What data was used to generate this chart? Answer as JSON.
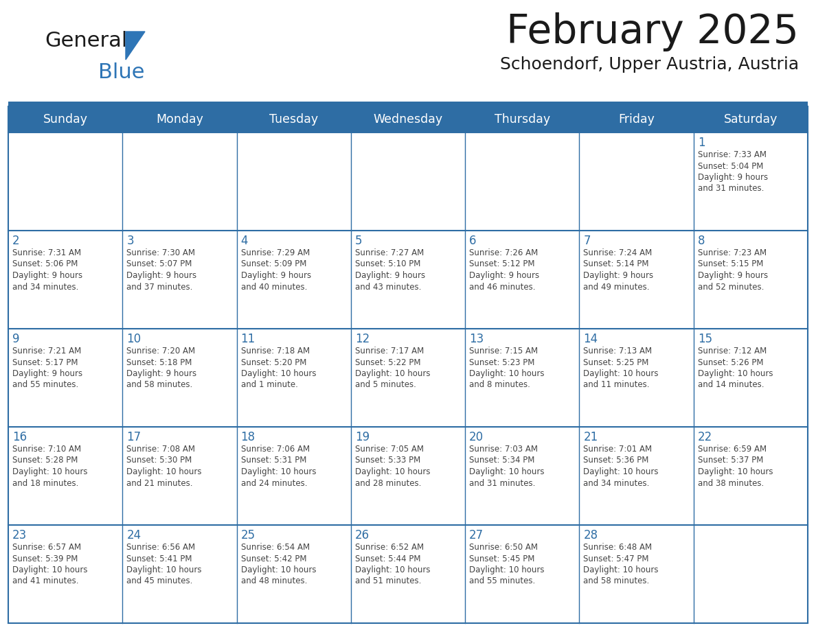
{
  "title": "February 2025",
  "subtitle": "Schoendorf, Upper Austria, Austria",
  "header_bg": "#2E6DA4",
  "header_text_color": "#FFFFFF",
  "day_headers": [
    "Sunday",
    "Monday",
    "Tuesday",
    "Wednesday",
    "Thursday",
    "Friday",
    "Saturday"
  ],
  "cell_bg": "#FFFFFF",
  "border_color": "#2E6DA4",
  "date_color": "#2E6DA4",
  "text_color": "#444444",
  "logo_general_color": "#1A1A1A",
  "logo_blue_color": "#2E75B6",
  "weeks": [
    [
      {
        "day": null,
        "info": ""
      },
      {
        "day": null,
        "info": ""
      },
      {
        "day": null,
        "info": ""
      },
      {
        "day": null,
        "info": ""
      },
      {
        "day": null,
        "info": ""
      },
      {
        "day": null,
        "info": ""
      },
      {
        "day": 1,
        "info": "Sunrise: 7:33 AM\nSunset: 5:04 PM\nDaylight: 9 hours\nand 31 minutes."
      }
    ],
    [
      {
        "day": 2,
        "info": "Sunrise: 7:31 AM\nSunset: 5:06 PM\nDaylight: 9 hours\nand 34 minutes."
      },
      {
        "day": 3,
        "info": "Sunrise: 7:30 AM\nSunset: 5:07 PM\nDaylight: 9 hours\nand 37 minutes."
      },
      {
        "day": 4,
        "info": "Sunrise: 7:29 AM\nSunset: 5:09 PM\nDaylight: 9 hours\nand 40 minutes."
      },
      {
        "day": 5,
        "info": "Sunrise: 7:27 AM\nSunset: 5:10 PM\nDaylight: 9 hours\nand 43 minutes."
      },
      {
        "day": 6,
        "info": "Sunrise: 7:26 AM\nSunset: 5:12 PM\nDaylight: 9 hours\nand 46 minutes."
      },
      {
        "day": 7,
        "info": "Sunrise: 7:24 AM\nSunset: 5:14 PM\nDaylight: 9 hours\nand 49 minutes."
      },
      {
        "day": 8,
        "info": "Sunrise: 7:23 AM\nSunset: 5:15 PM\nDaylight: 9 hours\nand 52 minutes."
      }
    ],
    [
      {
        "day": 9,
        "info": "Sunrise: 7:21 AM\nSunset: 5:17 PM\nDaylight: 9 hours\nand 55 minutes."
      },
      {
        "day": 10,
        "info": "Sunrise: 7:20 AM\nSunset: 5:18 PM\nDaylight: 9 hours\nand 58 minutes."
      },
      {
        "day": 11,
        "info": "Sunrise: 7:18 AM\nSunset: 5:20 PM\nDaylight: 10 hours\nand 1 minute."
      },
      {
        "day": 12,
        "info": "Sunrise: 7:17 AM\nSunset: 5:22 PM\nDaylight: 10 hours\nand 5 minutes."
      },
      {
        "day": 13,
        "info": "Sunrise: 7:15 AM\nSunset: 5:23 PM\nDaylight: 10 hours\nand 8 minutes."
      },
      {
        "day": 14,
        "info": "Sunrise: 7:13 AM\nSunset: 5:25 PM\nDaylight: 10 hours\nand 11 minutes."
      },
      {
        "day": 15,
        "info": "Sunrise: 7:12 AM\nSunset: 5:26 PM\nDaylight: 10 hours\nand 14 minutes."
      }
    ],
    [
      {
        "day": 16,
        "info": "Sunrise: 7:10 AM\nSunset: 5:28 PM\nDaylight: 10 hours\nand 18 minutes."
      },
      {
        "day": 17,
        "info": "Sunrise: 7:08 AM\nSunset: 5:30 PM\nDaylight: 10 hours\nand 21 minutes."
      },
      {
        "day": 18,
        "info": "Sunrise: 7:06 AM\nSunset: 5:31 PM\nDaylight: 10 hours\nand 24 minutes."
      },
      {
        "day": 19,
        "info": "Sunrise: 7:05 AM\nSunset: 5:33 PM\nDaylight: 10 hours\nand 28 minutes."
      },
      {
        "day": 20,
        "info": "Sunrise: 7:03 AM\nSunset: 5:34 PM\nDaylight: 10 hours\nand 31 minutes."
      },
      {
        "day": 21,
        "info": "Sunrise: 7:01 AM\nSunset: 5:36 PM\nDaylight: 10 hours\nand 34 minutes."
      },
      {
        "day": 22,
        "info": "Sunrise: 6:59 AM\nSunset: 5:37 PM\nDaylight: 10 hours\nand 38 minutes."
      }
    ],
    [
      {
        "day": 23,
        "info": "Sunrise: 6:57 AM\nSunset: 5:39 PM\nDaylight: 10 hours\nand 41 minutes."
      },
      {
        "day": 24,
        "info": "Sunrise: 6:56 AM\nSunset: 5:41 PM\nDaylight: 10 hours\nand 45 minutes."
      },
      {
        "day": 25,
        "info": "Sunrise: 6:54 AM\nSunset: 5:42 PM\nDaylight: 10 hours\nand 48 minutes."
      },
      {
        "day": 26,
        "info": "Sunrise: 6:52 AM\nSunset: 5:44 PM\nDaylight: 10 hours\nand 51 minutes."
      },
      {
        "day": 27,
        "info": "Sunrise: 6:50 AM\nSunset: 5:45 PM\nDaylight: 10 hours\nand 55 minutes."
      },
      {
        "day": 28,
        "info": "Sunrise: 6:48 AM\nSunset: 5:47 PM\nDaylight: 10 hours\nand 58 minutes."
      },
      {
        "day": null,
        "info": ""
      }
    ]
  ]
}
